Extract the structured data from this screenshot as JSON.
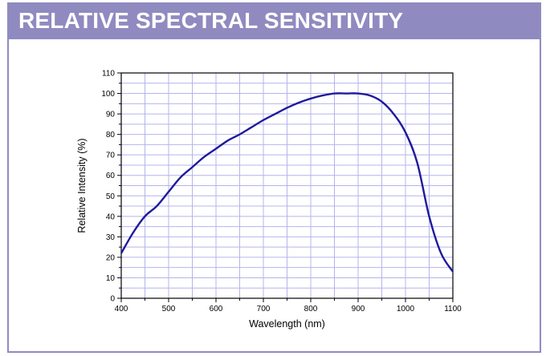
{
  "header": {
    "title": "RELATIVE SPECTRAL SENSITIVITY"
  },
  "colors": {
    "header_bg": "#8f8bc0",
    "grid": "#b4b4ee",
    "series": "#1f1a9c"
  },
  "chart_data": {
    "type": "line",
    "title": "",
    "xlabel": "Wavelength (nm)",
    "ylabel": "Relative Intensity (%)",
    "xlim": [
      400,
      1100
    ],
    "ylim": [
      0,
      110
    ],
    "xticks": [
      "400",
      "500",
      "600",
      "700",
      "800",
      "900",
      "1000",
      "1100"
    ],
    "yticks": [
      "0",
      "10",
      "20",
      "30",
      "40",
      "50",
      "60",
      "70",
      "80",
      "90",
      "100",
      "110"
    ],
    "grid": true,
    "series": [
      {
        "x": [
          400,
          425,
          450,
          475,
          500,
          525,
          550,
          575,
          600,
          625,
          650,
          675,
          700,
          725,
          750,
          775,
          800,
          825,
          850,
          875,
          900,
          925,
          950,
          975,
          1000,
          1025,
          1050,
          1075,
          1100
        ],
        "y": [
          22,
          32,
          40,
          45,
          52,
          59,
          64,
          69,
          73,
          77,
          80,
          83.5,
          87,
          90,
          93,
          95.5,
          97.5,
          99,
          100,
          100,
          100,
          99,
          96,
          90,
          81,
          66,
          40,
          22,
          13
        ]
      }
    ]
  }
}
